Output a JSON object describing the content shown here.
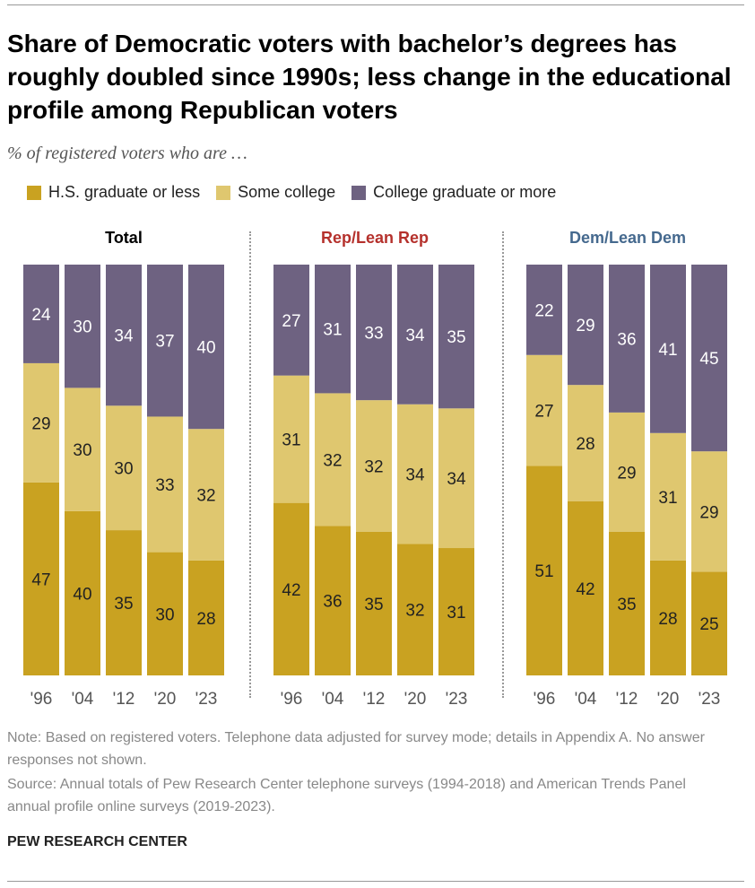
{
  "title": "Share of Democratic voters with bachelor’s degrees has roughly doubled since 1990s; less change in the educational profile among Republican voters",
  "subtitle": "% of registered voters who are …",
  "note": "Note: Based on registered voters. Telephone data adjusted for survey mode; details in Appendix A. No answer responses not shown.",
  "source": "Source: Annual totals of Pew Research Center telephone surveys (1994-2018) and American Trends Panel annual profile online surveys (2019-2023).",
  "footer": "PEW RESEARCH CENTER",
  "chart_data": {
    "type": "bar",
    "stacked": true,
    "categories": [
      "'96",
      "'04",
      "'12",
      "'20",
      "'23"
    ],
    "legend": [
      "H.S. graduate or less",
      "Some college",
      "College graduate or more"
    ],
    "colors": {
      "H.S. graduate or less": "#c9a221",
      "Some college": "#dfc76f",
      "College graduate or more": "#6e6281"
    },
    "panels": [
      {
        "title": "Total",
        "title_color": "#000000",
        "series": [
          {
            "name": "H.S. graduate or less",
            "values": [
              47,
              40,
              35,
              30,
              28
            ]
          },
          {
            "name": "Some college",
            "values": [
              29,
              30,
              30,
              33,
              32
            ]
          },
          {
            "name": "College graduate or more",
            "values": [
              24,
              30,
              34,
              37,
              40
            ]
          }
        ]
      },
      {
        "title": "Rep/Lean Rep",
        "title_color": "#b5312c",
        "series": [
          {
            "name": "H.S. graduate or less",
            "values": [
              42,
              36,
              35,
              32,
              31
            ]
          },
          {
            "name": "Some college",
            "values": [
              31,
              32,
              32,
              34,
              34
            ]
          },
          {
            "name": "College graduate or more",
            "values": [
              27,
              31,
              33,
              34,
              35
            ]
          }
        ]
      },
      {
        "title": "Dem/Lean Dem",
        "title_color": "#45698e",
        "series": [
          {
            "name": "H.S. graduate or less",
            "values": [
              51,
              42,
              35,
              28,
              25
            ]
          },
          {
            "name": "Some college",
            "values": [
              27,
              28,
              29,
              31,
              29
            ]
          },
          {
            "name": "College graduate or more",
            "values": [
              22,
              29,
              36,
              41,
              45
            ]
          }
        ]
      }
    ]
  }
}
